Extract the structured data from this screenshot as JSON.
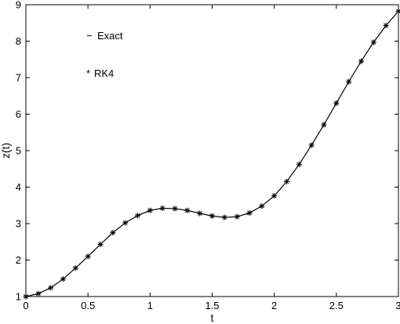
{
  "chart_data": {
    "type": "line",
    "xlabel": "t",
    "ylabel": "z(t)",
    "xlim": [
      0,
      3
    ],
    "ylim": [
      1,
      9
    ],
    "xticks": [
      0,
      0.5,
      1,
      1.5,
      2,
      2.5,
      3
    ],
    "xtick_labels": [
      "0",
      "0.5",
      "1",
      "1.5",
      "2",
      "2.5",
      "3"
    ],
    "yticks": [
      1,
      2,
      3,
      4,
      5,
      6,
      7,
      8,
      9
    ],
    "ytick_labels": [
      "1",
      "2",
      "3",
      "4",
      "5",
      "6",
      "7",
      "8",
      "9"
    ],
    "grid": false,
    "legend_placement": "top-left",
    "series": [
      {
        "name": "Exact",
        "legend_text": "Exact",
        "legend_symbol": "−",
        "style": "line",
        "color": "#000000",
        "x": [
          0,
          0.1,
          0.2,
          0.3,
          0.4,
          0.5,
          0.6,
          0.7,
          0.8,
          0.9,
          1.0,
          1.1,
          1.2,
          1.3,
          1.4,
          1.5,
          1.6,
          1.7,
          1.8,
          1.9,
          2.0,
          2.1,
          2.2,
          2.3,
          2.4,
          2.5,
          2.6,
          2.7,
          2.8,
          2.9,
          3.0
        ],
        "y": [
          1.0,
          1.08,
          1.24,
          1.48,
          1.78,
          2.1,
          2.43,
          2.75,
          3.02,
          3.22,
          3.36,
          3.42,
          3.41,
          3.36,
          3.28,
          3.21,
          3.17,
          3.19,
          3.29,
          3.48,
          3.76,
          4.15,
          4.62,
          5.15,
          5.71,
          6.3,
          6.89,
          7.45,
          7.97,
          8.43,
          8.82
        ]
      },
      {
        "name": "RK4",
        "legend_text": "RK4",
        "legend_symbol": "*",
        "style": "marker",
        "marker": "asterisk",
        "color": "#000000",
        "x": [
          0,
          0.1,
          0.2,
          0.3,
          0.4,
          0.5,
          0.6,
          0.7,
          0.8,
          0.9,
          1.0,
          1.1,
          1.2,
          1.3,
          1.4,
          1.5,
          1.6,
          1.7,
          1.8,
          1.9,
          2.0,
          2.1,
          2.2,
          2.3,
          2.4,
          2.5,
          2.6,
          2.7,
          2.8,
          2.9,
          3.0
        ],
        "y": [
          1.0,
          1.08,
          1.24,
          1.48,
          1.78,
          2.1,
          2.43,
          2.75,
          3.02,
          3.22,
          3.36,
          3.42,
          3.41,
          3.36,
          3.28,
          3.21,
          3.17,
          3.19,
          3.29,
          3.48,
          3.76,
          4.15,
          4.62,
          5.15,
          5.71,
          6.3,
          6.89,
          7.45,
          7.97,
          8.43,
          8.82
        ]
      }
    ]
  }
}
